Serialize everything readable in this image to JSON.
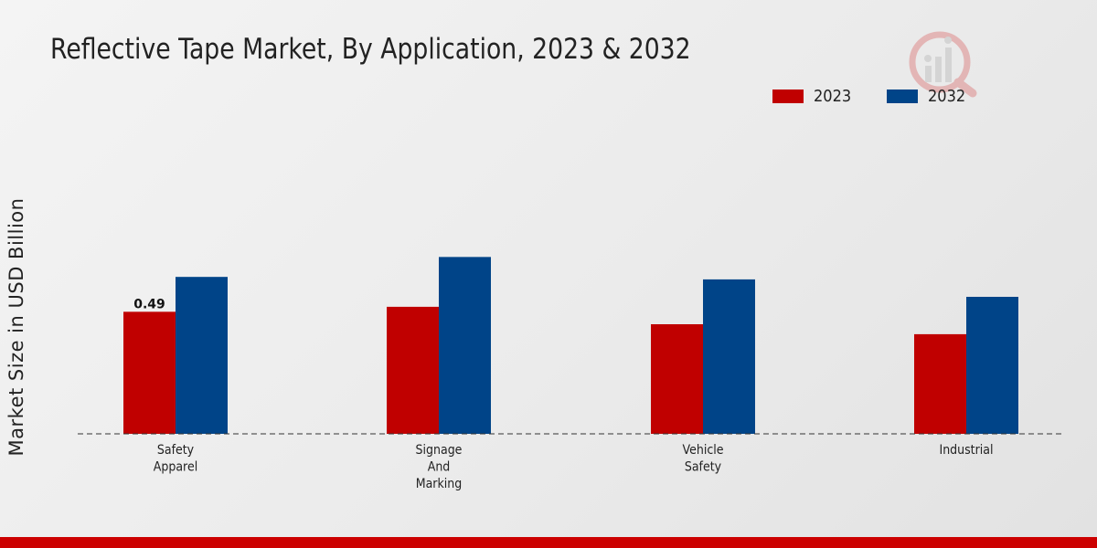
{
  "title": "Reflective Tape Market, By Application, 2023 & 2032",
  "chart_data": {
    "type": "bar",
    "title": "Reflective Tape Market, By Application, 2023 & 2032",
    "xlabel": "",
    "ylabel": "Market Size in USD Billion",
    "ylim": [
      0,
      1.1
    ],
    "categories": [
      [
        "Safety",
        "Apparel"
      ],
      [
        "Signage",
        "And",
        "Marking"
      ],
      [
        "Vehicle",
        "Safety"
      ],
      [
        "Industrial"
      ]
    ],
    "series": [
      {
        "name": "2023",
        "color": "#c00000",
        "values": [
          0.49,
          0.51,
          0.44,
          0.4
        ]
      },
      {
        "name": "2032",
        "color": "#004488",
        "values": [
          0.63,
          0.71,
          0.62,
          0.55
        ]
      }
    ],
    "data_labels": [
      {
        "series": 0,
        "index": 0,
        "text": "0.49"
      }
    ],
    "legend_position": "top-right",
    "grid": false
  },
  "colors": {
    "accent": "#cc0000",
    "series_2023": "#c00000",
    "series_2032": "#004488"
  },
  "icons": {
    "watermark": "market-research-logo-icon"
  }
}
